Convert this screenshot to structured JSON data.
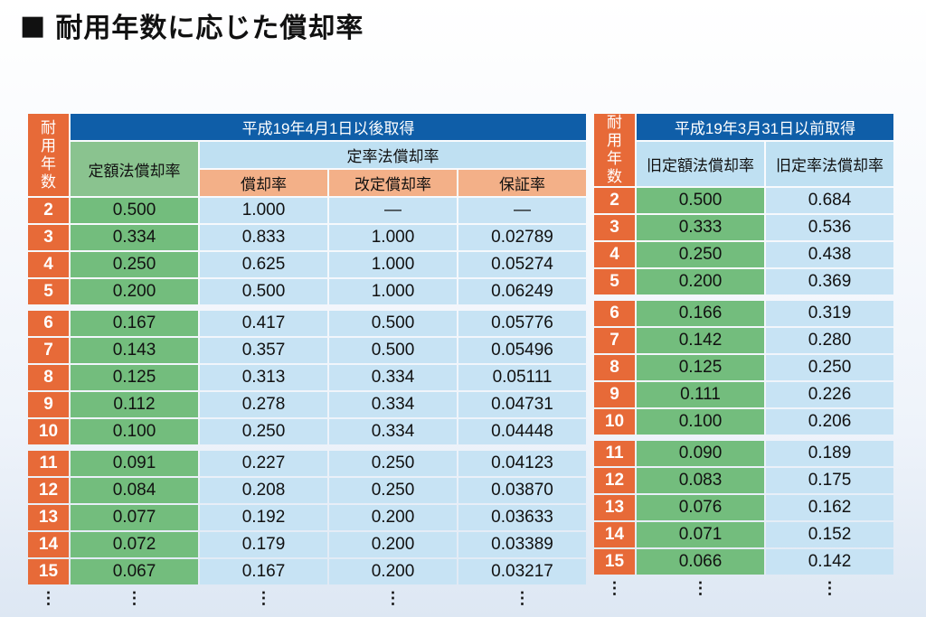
{
  "title": {
    "marker": "■",
    "text": "耐用年数に応じた償却率"
  },
  "left_table": {
    "years_header": [
      "耐",
      "用",
      "年",
      "数"
    ],
    "group_header": "平成19年4月1日以後取得",
    "straight_line_header": "定額法償却率",
    "declining_header": "定率法償却率",
    "sub_headers": [
      "償却率",
      "改定償却率",
      "保証率"
    ],
    "rows": [
      [
        "2",
        "0.500",
        "1.000",
        "—",
        "—"
      ],
      [
        "3",
        "0.334",
        "0.833",
        "1.000",
        "0.02789"
      ],
      [
        "4",
        "0.250",
        "0.625",
        "1.000",
        "0.05274"
      ],
      [
        "5",
        "0.200",
        "0.500",
        "1.000",
        "0.06249"
      ],
      [
        "6",
        "0.167",
        "0.417",
        "0.500",
        "0.05776"
      ],
      [
        "7",
        "0.143",
        "0.357",
        "0.500",
        "0.05496"
      ],
      [
        "8",
        "0.125",
        "0.313",
        "0.334",
        "0.05111"
      ],
      [
        "9",
        "0.112",
        "0.278",
        "0.334",
        "0.04731"
      ],
      [
        "10",
        "0.100",
        "0.250",
        "0.334",
        "0.04448"
      ],
      [
        "11",
        "0.091",
        "0.227",
        "0.250",
        "0.04123"
      ],
      [
        "12",
        "0.084",
        "0.208",
        "0.250",
        "0.03870"
      ],
      [
        "13",
        "0.077",
        "0.192",
        "0.200",
        "0.03633"
      ],
      [
        "14",
        "0.072",
        "0.179",
        "0.200",
        "0.03389"
      ],
      [
        "15",
        "0.067",
        "0.167",
        "0.200",
        "0.03217"
      ]
    ],
    "continuation": "⋮"
  },
  "right_table": {
    "years_header": [
      "耐",
      "用",
      "年",
      "数"
    ],
    "group_header": "平成19年3月31日以前取得",
    "old_straight_line_header": "旧定額法償却率",
    "old_declining_header": "旧定率法償却率",
    "rows": [
      [
        "2",
        "0.500",
        "0.684"
      ],
      [
        "3",
        "0.333",
        "0.536"
      ],
      [
        "4",
        "0.250",
        "0.438"
      ],
      [
        "5",
        "0.200",
        "0.369"
      ],
      [
        "6",
        "0.166",
        "0.319"
      ],
      [
        "7",
        "0.142",
        "0.280"
      ],
      [
        "8",
        "0.125",
        "0.250"
      ],
      [
        "9",
        "0.111",
        "0.226"
      ],
      [
        "10",
        "0.100",
        "0.206"
      ],
      [
        "11",
        "0.090",
        "0.189"
      ],
      [
        "12",
        "0.083",
        "0.175"
      ],
      [
        "13",
        "0.076",
        "0.162"
      ],
      [
        "14",
        "0.071",
        "0.152"
      ],
      [
        "15",
        "0.066",
        "0.142"
      ]
    ],
    "continuation": "⋮"
  }
}
